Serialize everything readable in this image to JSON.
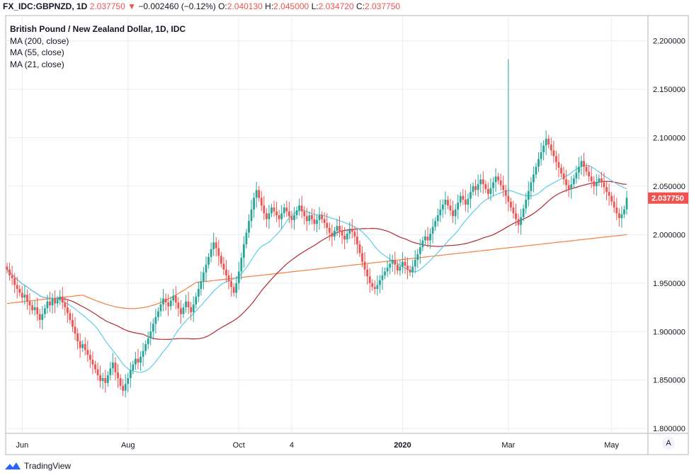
{
  "header": {
    "symbol": "FX_IDC:GBPNZD, 1D",
    "last": "2.037750",
    "change_arrow": "▼",
    "change": "−0.002460 (−0.12%)",
    "o_label": "O:",
    "o": "2.040130",
    "h_label": "H:",
    "h": "2.045000",
    "l_label": "L:",
    "l": "2.034720",
    "c_label": "C:",
    "c": "2.037750"
  },
  "legend": {
    "title": "British Pound / New Zealand Dollar, 1D, IDC",
    "ma200": "MA (200, close)",
    "ma55": "MA (55, close)",
    "ma21": "MA (21, close)"
  },
  "footer": {
    "brand": "TradingView",
    "auto_button": "A"
  },
  "colors": {
    "up": "#26a69a",
    "down": "#ef5350",
    "ma200": "#f57f3e",
    "ma55": "#b22833",
    "ma21": "#5ccfe6",
    "grid": "#e9ecf2",
    "axis_text": "#131722",
    "price_tag": "#ef5350"
  },
  "chart_data": {
    "type": "candlestick",
    "title": "British Pound / New Zealand Dollar, 1D, IDC",
    "y_ticks": [
      1.8,
      1.85,
      1.9,
      1.95,
      2.0,
      2.05,
      2.1,
      2.15,
      2.2
    ],
    "y_tick_labels": [
      "1.800000",
      "1.850000",
      "1.900000",
      "1.950000",
      "2.000000",
      "2.050000",
      "2.100000",
      "2.150000",
      "2.200000"
    ],
    "ylim": [
      1.795,
      2.226
    ],
    "x_ticks": [
      "Jun",
      "Aug",
      "Oct",
      "4",
      "2020",
      "Mar",
      "May"
    ],
    "x_tick_index": [
      6,
      48,
      92,
      113,
      157,
      199,
      240
    ],
    "last_price": 2.03775,
    "last_price_label": "2.037750",
    "grid": true,
    "closes": [
      1.964,
      1.958,
      1.955,
      1.948,
      1.944,
      1.94,
      1.935,
      1.938,
      1.931,
      1.927,
      1.922,
      1.925,
      1.918,
      1.912,
      1.918,
      1.924,
      1.931,
      1.927,
      1.934,
      1.929,
      1.933,
      1.936,
      1.93,
      1.925,
      1.919,
      1.912,
      1.905,
      1.898,
      1.89,
      1.883,
      1.887,
      1.881,
      1.876,
      1.871,
      1.866,
      1.861,
      1.855,
      1.849,
      1.852,
      1.847,
      1.855,
      1.862,
      1.868,
      1.858,
      1.852,
      1.844,
      1.839,
      1.846,
      1.852,
      1.86,
      1.866,
      1.872,
      1.868,
      1.874,
      1.88,
      1.887,
      1.893,
      1.9,
      1.908,
      1.915,
      1.921,
      1.928,
      1.934,
      1.93,
      1.926,
      1.932,
      1.937,
      1.93,
      1.924,
      1.918,
      1.925,
      1.931,
      1.925,
      1.92,
      1.928,
      1.936,
      1.944,
      1.952,
      1.961,
      1.969,
      1.977,
      1.985,
      1.992,
      1.986,
      1.978,
      1.97,
      1.964,
      1.958,
      1.952,
      1.946,
      1.94,
      1.95,
      1.962,
      1.976,
      1.99,
      2.002,
      2.014,
      2.026,
      2.038,
      2.046,
      2.038,
      2.03,
      2.022,
      2.016,
      2.022,
      2.028,
      2.024,
      2.02,
      2.016,
      2.022,
      2.028,
      2.024,
      2.019,
      2.015,
      2.02,
      2.025,
      2.03,
      2.024,
      2.019,
      2.014,
      2.02,
      2.016,
      2.011,
      2.015,
      2.02,
      2.016,
      2.012,
      2.007,
      2.002,
      1.998,
      2.004,
      2.009,
      2.004,
      1.999,
      1.995,
      2.001,
      2.006,
      2.003,
      1.998,
      1.99,
      1.981,
      1.972,
      1.964,
      1.957,
      1.95,
      1.946,
      1.944,
      1.948,
      1.953,
      1.958,
      1.962,
      1.966,
      1.97,
      1.974,
      1.969,
      1.963,
      1.967,
      1.972,
      1.968,
      1.964,
      1.961,
      1.967,
      1.974,
      1.98,
      1.987,
      1.994,
      1.998,
      1.994,
      2.001,
      2.008,
      2.014,
      2.02,
      2.026,
      2.031,
      2.036,
      2.03,
      2.025,
      2.019,
      2.026,
      2.033,
      2.04,
      2.036,
      2.031,
      2.037,
      2.044,
      2.05,
      2.046,
      2.052,
      2.057,
      2.052,
      2.047,
      2.042,
      2.048,
      2.054,
      2.06,
      2.056,
      2.051,
      2.046,
      2.04,
      2.034,
      2.028,
      2.022,
      2.016,
      2.01,
      2.018,
      2.027,
      2.036,
      2.045,
      2.054,
      2.062,
      2.07,
      2.078,
      2.085,
      2.092,
      2.099,
      2.093,
      2.087,
      2.081,
      2.075,
      2.069,
      2.063,
      2.057,
      2.051,
      2.047,
      2.052,
      2.058,
      2.064,
      2.07,
      2.076,
      2.07,
      2.065,
      2.06,
      2.055,
      2.05,
      2.054,
      2.058,
      2.054,
      2.049,
      2.044,
      2.04,
      2.034,
      2.028,
      2.022,
      2.017,
      2.021,
      2.026,
      2.038
    ]
  }
}
